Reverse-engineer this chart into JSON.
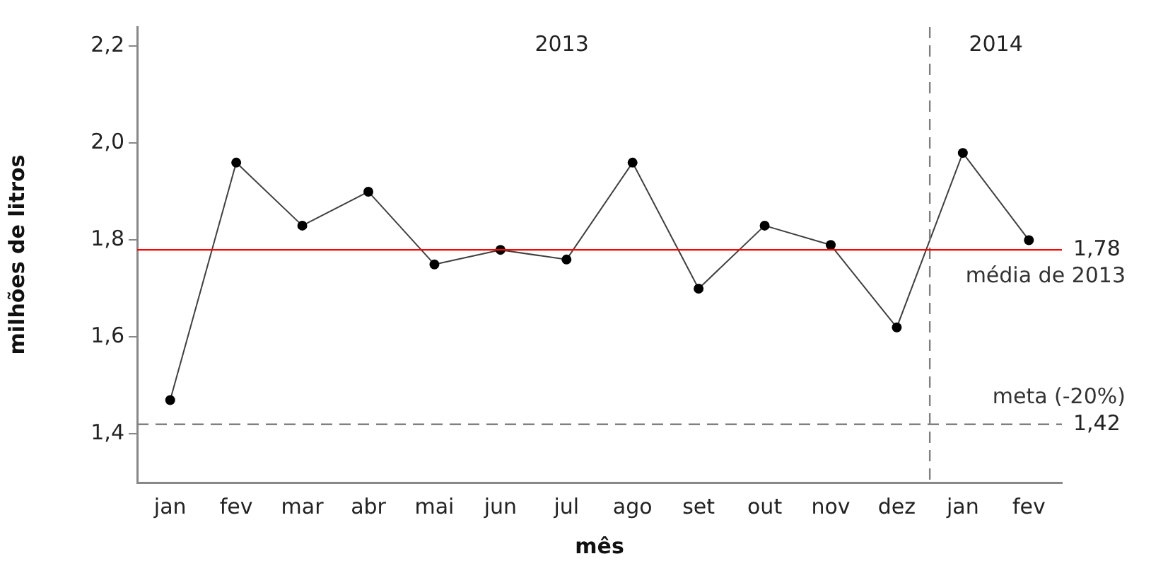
{
  "chart_data": {
    "type": "line",
    "xlabel": "mês",
    "ylabel": "milhões de litros",
    "categories": [
      "jan",
      "fev",
      "mar",
      "abr",
      "mai",
      "jun",
      "jul",
      "ago",
      "set",
      "out",
      "nov",
      "dez",
      "jan",
      "fev"
    ],
    "series": [
      {
        "color": "#404040",
        "values": [
          1.47,
          1.96,
          1.83,
          1.9,
          1.75,
          1.78,
          1.76,
          1.96,
          1.7,
          1.83,
          1.79,
          1.62,
          1.98,
          1.8
        ]
      }
    ],
    "ylim": [
      1.3,
      2.24
    ],
    "yticks": [
      {
        "value": 1.4,
        "label": "1,4"
      },
      {
        "value": 1.6,
        "label": "1,6"
      },
      {
        "value": 1.8,
        "label": "1,8"
      },
      {
        "value": 2.0,
        "label": "2,0"
      },
      {
        "value": 2.2,
        "label": "2,2"
      }
    ],
    "ref_lines": [
      {
        "axis": "y",
        "value": 1.78,
        "label": "média de 2013",
        "color": "#ff0000",
        "line_style": "solid"
      },
      {
        "axis": "y",
        "value": 1.42,
        "label": "meta (-20%)",
        "color": "#808080",
        "line_style": "dashed"
      }
    ],
    "annotations": [
      "2013",
      "2014",
      "1,78",
      "1,42"
    ],
    "marker": "circle",
    "line_style": "solid",
    "grid": false,
    "legend": false
  }
}
